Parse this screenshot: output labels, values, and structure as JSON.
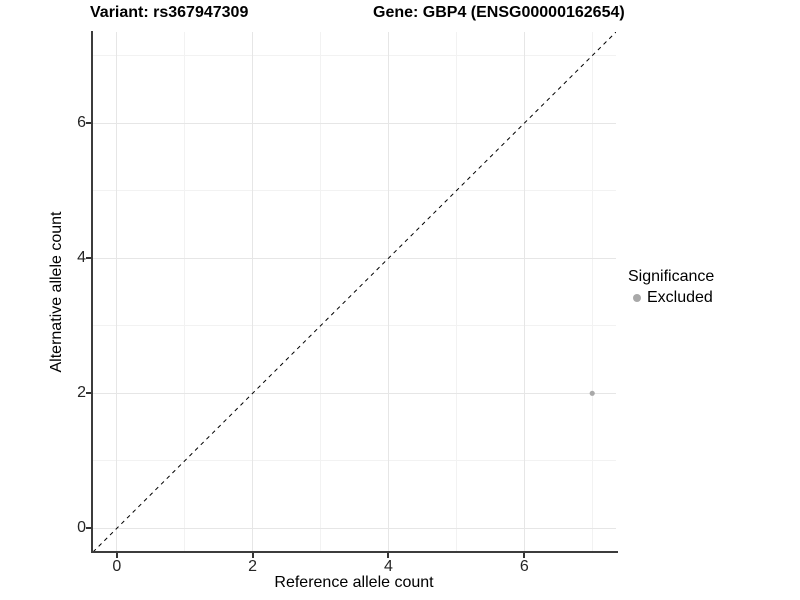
{
  "titles": {
    "left": "Variant: rs367947309",
    "right": "Gene: GBP4 (ENSG00000162654)"
  },
  "chart_data": {
    "type": "scatter",
    "title": "Variant: rs367947309    Gene: GBP4 (ENSG00000162654)",
    "xlabel": "Reference allele count",
    "ylabel": "Alternative allele count",
    "xlim": [
      -0.35,
      7.35
    ],
    "ylim": [
      -0.35,
      7.35
    ],
    "x_major_ticks": [
      0,
      2,
      4,
      6
    ],
    "y_major_ticks": [
      0,
      2,
      4,
      6
    ],
    "x_minor_ticks": [
      1,
      3,
      5,
      7
    ],
    "y_minor_ticks": [
      1,
      3,
      5,
      7
    ],
    "grid": true,
    "reference_line": {
      "kind": "identity",
      "style": "dashed",
      "color": "#000000"
    },
    "series": [
      {
        "name": "Excluded",
        "color": "#a9a9a9",
        "points": [
          {
            "x": 7,
            "y": 2
          }
        ]
      }
    ],
    "legend": {
      "title": "Significance",
      "position": "right",
      "items": [
        {
          "label": "Excluded",
          "color": "#a9a9a9"
        }
      ]
    }
  },
  "colors": {
    "background": "#ffffff",
    "grid_major": "#e6e6e6",
    "grid_minor": "#f2f2f2",
    "axis_line": "#3c3c3c",
    "tick_text": "#262626",
    "point": "#a9a9a9"
  }
}
